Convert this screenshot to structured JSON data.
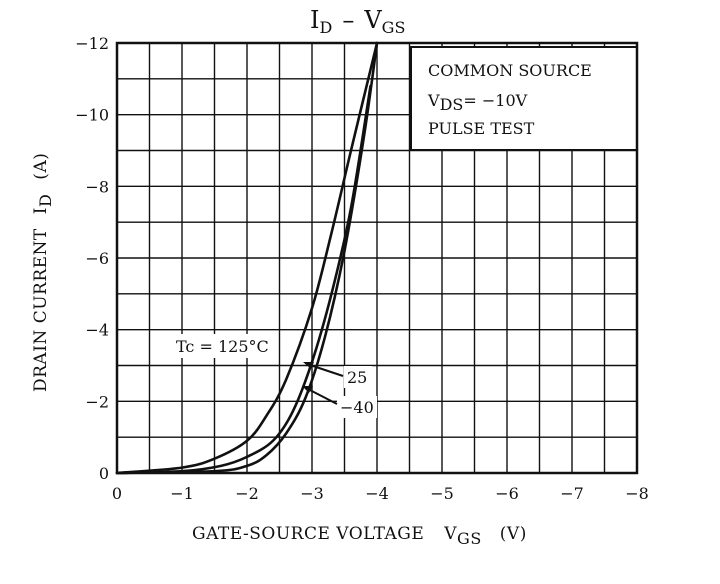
{
  "chart_data": {
    "type": "line",
    "title": {
      "main_a": "I",
      "sub_a": "D",
      "dash": "–",
      "main_b": "V",
      "sub_b": "GS"
    },
    "xlabel": {
      "text": "GATE-SOURCE VOLTAGE",
      "sym": "V",
      "sub": "GS",
      "unit": "(V)"
    },
    "ylabel": {
      "text": "DRAIN CURRENT",
      "sym": "I",
      "sub": "D",
      "unit": "(A)"
    },
    "xlim": [
      0,
      -8
    ],
    "ylim": [
      0,
      -12
    ],
    "x_ticks": [
      0,
      -1,
      -2,
      -3,
      -4,
      -5,
      -6,
      -7,
      -8
    ],
    "x_tick_labels": [
      "0",
      "−1",
      "−2",
      "−3",
      "−4",
      "−5",
      "−6",
      "−7",
      "−8"
    ],
    "y_ticks": [
      0,
      -2,
      -4,
      -6,
      -8,
      -10,
      -12
    ],
    "y_tick_labels": [
      "0",
      "−2",
      "−4",
      "−6",
      "−8",
      "−10",
      "−12"
    ],
    "grid": true,
    "conditions": {
      "line1": "COMMON SOURCE",
      "line2_sym": "V",
      "line2_sub": "DS",
      "line2_val": "= −10V",
      "line3": "PULSE TEST"
    },
    "series": [
      {
        "name": "Tc = 125°C",
        "x": [
          0,
          -1,
          -1.5,
          -2,
          -2.3,
          -2.6,
          -3.0,
          -3.3,
          -3.6,
          -4.0
        ],
        "y": [
          0,
          -0.15,
          -0.4,
          -0.9,
          -1.6,
          -2.6,
          -4.6,
          -6.7,
          -9.0,
          -12.0
        ]
      },
      {
        "name": "25",
        "x": [
          0,
          -1,
          -1.6,
          -2.0,
          -2.4,
          -2.7,
          -3.0,
          -3.3,
          -3.6,
          -3.9
        ],
        "y": [
          0,
          -0.05,
          -0.2,
          -0.45,
          -0.9,
          -1.7,
          -3.1,
          -5.0,
          -7.4,
          -10.8
        ]
      },
      {
        "name": "−40",
        "x": [
          0,
          -1.5,
          -2.0,
          -2.3,
          -2.6,
          -2.9,
          -3.2,
          -3.5,
          -3.8,
          -4.0
        ],
        "y": [
          0,
          -0.05,
          -0.2,
          -0.5,
          -1.1,
          -2.1,
          -3.8,
          -6.2,
          -9.4,
          -12.0
        ]
      }
    ],
    "annotations": {
      "t125": "Tc = 125°C",
      "t25": "25",
      "t40": "−40"
    }
  }
}
